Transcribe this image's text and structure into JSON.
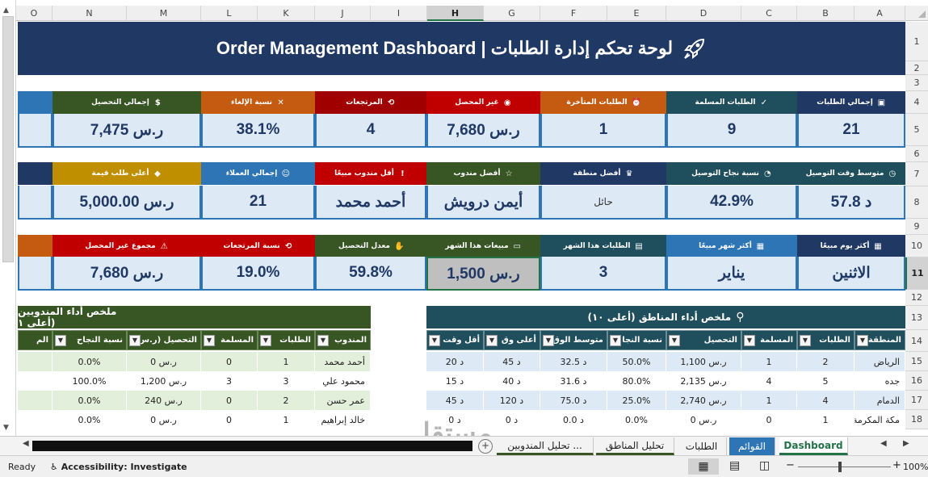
{
  "spreadsheet": {
    "columns": [
      "A",
      "B",
      "C",
      "D",
      "E",
      "F",
      "G",
      "H",
      "I",
      "J",
      "K",
      "L",
      "M",
      "N",
      "O"
    ],
    "selected_column": "H",
    "rows": [
      "1",
      "2",
      "3",
      "4",
      "5",
      "6",
      "7",
      "8",
      "9",
      "10",
      "11",
      "12",
      "13",
      "14",
      "15",
      "16",
      "17",
      "18"
    ],
    "selected_row": "11"
  },
  "title": "Order Management Dashboard | لوحة تحكم إدارة الطلبات",
  "kpi_row1": [
    {
      "label": "إجمالي الطلبات",
      "value": "21",
      "color": "#1f3864",
      "icon": "document-icon"
    },
    {
      "label": "الطلبات المسلمة",
      "value": "9",
      "color": "#1f4e5c",
      "icon": "check-icon"
    },
    {
      "label": "الطلبات المتأخرة",
      "value": "1",
      "color": "#c55a11",
      "icon": "alarm-icon"
    },
    {
      "label": "غير المحصل",
      "value": "ر.س 7,680",
      "color": "#c00000",
      "icon": "wallet-icon"
    },
    {
      "label": "المرتجعات",
      "value": "4",
      "color": "#a00000",
      "icon": "return-icon"
    },
    {
      "label": "نسبة الإلغاء",
      "value": "38.1%",
      "color": "#c55a11",
      "icon": "x-icon"
    },
    {
      "label": "إجمالي التحصيل",
      "value": "ر.س 7,475",
      "color": "#375623",
      "icon": "money-icon"
    }
  ],
  "kpi_row2": [
    {
      "label": "متوسط وقت التوصيل",
      "value": "57.8 د",
      "color": "#1f4e5c",
      "icon": "clock-icon"
    },
    {
      "label": "نسبة نجاح التوصيل",
      "value": "42.9%",
      "color": "#1f4e5c",
      "icon": "chart-icon"
    },
    {
      "label": "أفضل منطقة",
      "value": "حائل",
      "color": "#1f3864",
      "icon": "trophy-icon"
    },
    {
      "label": "أفضل مندوب",
      "value": "أيمن درويش",
      "color": "#375623",
      "icon": "star-icon"
    },
    {
      "label": "أقل مندوب مبيعًا",
      "value": "أحمد محمد",
      "color": "#c00000",
      "icon": "alert-icon"
    },
    {
      "label": "إجمالي العملاء",
      "value": "21",
      "color": "#2e75b6",
      "icon": "users-icon"
    },
    {
      "label": "أعلى طلب قيمة",
      "value": "ر.س 5,000.00",
      "color": "#bf8f00",
      "icon": "diamond-icon"
    }
  ],
  "kpi_row3": [
    {
      "label": "أكثر يوم مبيعًا",
      "value": "الاثنين",
      "color": "#1f3864",
      "icon": "calendar-icon"
    },
    {
      "label": "أكثر شهر مبيعًا",
      "value": "يناير",
      "color": "#2e75b6",
      "icon": "calendar-icon"
    },
    {
      "label": "الطلبات هذا الشهر",
      "value": "3",
      "color": "#1f4e5c",
      "icon": "box-icon"
    },
    {
      "label": "مبيعات هذا الشهر",
      "value": "ر.س 1,500",
      "color": "#375623",
      "icon": "cart-icon"
    },
    {
      "label": "معدل التحصيل",
      "value": "59.8%",
      "color": "#375623",
      "icon": "hand-icon"
    },
    {
      "label": "نسبة المرتجعات",
      "value": "19.0%",
      "color": "#c00000",
      "icon": "return-icon"
    },
    {
      "label": "مجموع غير المحصل",
      "value": "ر.س 7,680",
      "color": "#c00000",
      "icon": "warning-icon"
    }
  ],
  "regions_table": {
    "title": "ملخص أداء المناطق (أعلى ١٠)",
    "headers": [
      "المنطقة",
      "الطلبات",
      "المسلمة",
      "التحصيل",
      "نسبة النجا",
      "متوسط الوق",
      "أعلى وق",
      "أقل وقت"
    ],
    "rows": [
      [
        "الرياض",
        "2",
        "1",
        "ر.س 1,100",
        "50.0%",
        "د 32.5",
        "د 45",
        "د 20"
      ],
      [
        "جده",
        "5",
        "4",
        "ر.س 2,135",
        "80.0%",
        "د 31.6",
        "د 40",
        "د 15"
      ],
      [
        "الدمام",
        "4",
        "1",
        "ر.س 2,740",
        "25.0%",
        "د 75.0",
        "د 120",
        "د 45"
      ],
      [
        "مكة المكرمة",
        "1",
        "0",
        "ر.س 0",
        "0.0%",
        "د 0.0",
        "د 0",
        "د 0"
      ]
    ]
  },
  "agents_table": {
    "title": "ملخص أداء المندوبين (أعلى ١",
    "headers": [
      "المندوب",
      "الطلبات",
      "المسلمة",
      "التحصيل (ر.س",
      "نسبة النجاح",
      "الم"
    ],
    "rows": [
      [
        "أحمد محمد",
        "1",
        "0",
        "ر.س 0",
        "0.0%"
      ],
      [
        "محمود علي",
        "3",
        "3",
        "ر.س 1,200",
        "100.0%"
      ],
      [
        "عمر حسن",
        "2",
        "0",
        "ر.س 240",
        "0.0%"
      ],
      [
        "خالد إبراهيم",
        "1",
        "0",
        "ر.س 0",
        "0.0%"
      ]
    ]
  },
  "sheet_tabs": [
    "Dashboard",
    "القوائم",
    "الطلبات",
    "تحليل المناطق",
    "تحليل المندوبين ..."
  ],
  "active_tab": "Dashboard",
  "status": {
    "ready": "Ready",
    "accessibility": "Accessibility: Investigate",
    "zoom": "100%"
  },
  "watermark": {
    "arabic": "مستقل",
    "latin": "mostaql.com"
  }
}
